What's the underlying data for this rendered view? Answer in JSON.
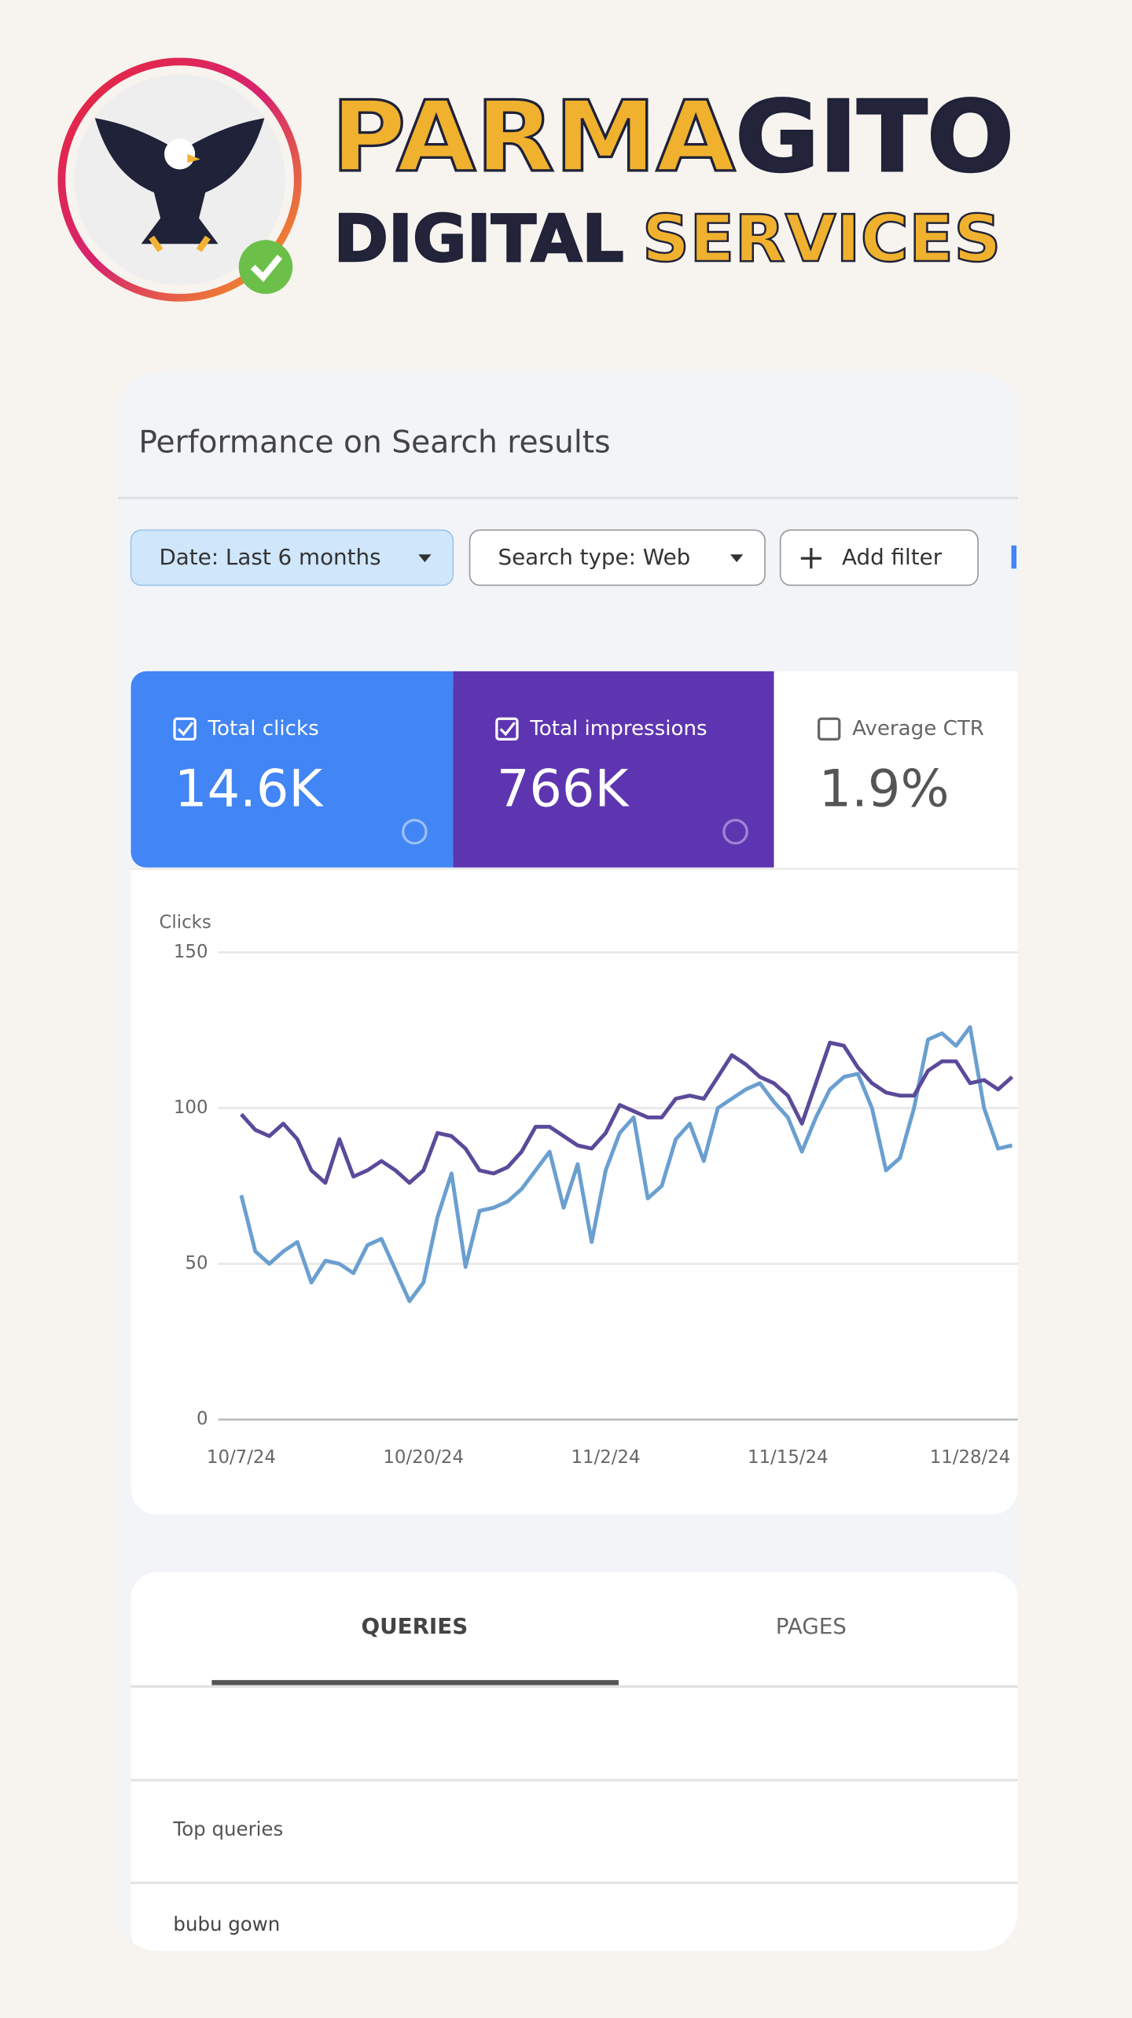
{
  "header": {
    "brand_part1": "PARMA",
    "brand_part2": "GITO",
    "line2_part1": "DIGITAL",
    "line2_part2": "SERVICES"
  },
  "card": {
    "title": "Performance on Search results",
    "filters": [
      "Date: Last 6 months",
      "Search type: Web",
      "Add filter"
    ],
    "metrics": [
      {
        "label": "Total clicks",
        "value": "14.6K"
      },
      {
        "label": "Total impressions",
        "value": "766K"
      },
      {
        "label": "Average CTR",
        "value": "1.9%"
      }
    ]
  },
  "chart_data": {
    "type": "line",
    "ylabel": "Clicks",
    "categories": [
      "10/7/24",
      null,
      null,
      null,
      null,
      null,
      null,
      null,
      null,
      null,
      null,
      null,
      null,
      "10/20/24",
      null,
      null,
      null,
      null,
      null,
      null,
      null,
      null,
      null,
      null,
      null,
      null,
      "11/2/24",
      null,
      null,
      null,
      null,
      null,
      null,
      null,
      null,
      null,
      null,
      null,
      null,
      "11/15/24",
      null,
      null,
      null,
      null,
      null,
      null,
      null,
      null,
      null,
      null,
      null,
      null,
      "11/28/24",
      null,
      null,
      null
    ],
    "series": [
      {
        "color": "#6a9fd0",
        "values": [
          72,
          54,
          50,
          54,
          57,
          44,
          51,
          50,
          47,
          56,
          58,
          48,
          38,
          44,
          65,
          79,
          49,
          67,
          68,
          70,
          74,
          80,
          86,
          68,
          82,
          57,
          80,
          92,
          97,
          71,
          75,
          90,
          95,
          83,
          100,
          103,
          106,
          108,
          102,
          97,
          86,
          97,
          106,
          110,
          111,
          100,
          80,
          84,
          100,
          122,
          124,
          120,
          126,
          100,
          87,
          88
        ]
      },
      {
        "color": "#5b4a9a",
        "values": [
          98,
          93,
          91,
          95,
          90,
          80,
          76,
          90,
          78,
          80,
          83,
          80,
          76,
          80,
          92,
          91,
          87,
          80,
          79,
          81,
          86,
          94,
          94,
          91,
          88,
          87,
          92,
          101,
          99,
          97,
          97,
          103,
          104,
          103,
          110,
          117,
          114,
          110,
          108,
          104,
          95,
          108,
          121,
          120,
          113,
          108,
          105,
          104,
          104,
          112,
          115,
          115,
          108,
          109,
          106,
          110
        ]
      }
    ],
    "ylim": [
      0,
      150
    ],
    "yticks": [
      0,
      50,
      100,
      150
    ],
    "grid": true
  },
  "tabs": [
    "QUERIES",
    "PAGES"
  ],
  "table": {
    "header": "Top queries",
    "rows": [
      "bubu gown"
    ]
  }
}
